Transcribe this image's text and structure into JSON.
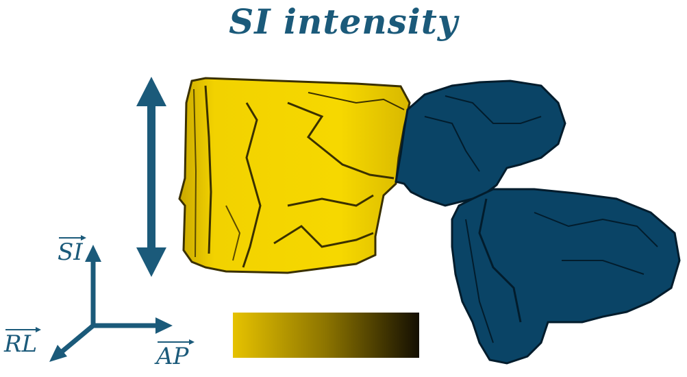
{
  "title": "SI intensity",
  "axes": {
    "si": "SI",
    "rl": "RL",
    "ap": "AP"
  },
  "colors": {
    "accent": "#1b5a7a",
    "vertebral_body": "#e8c400",
    "vertebral_body_dark": "#2c2400",
    "posterior_elements": "#0a4466",
    "gradient_start": "#e6c200",
    "gradient_end": "#140f02"
  }
}
